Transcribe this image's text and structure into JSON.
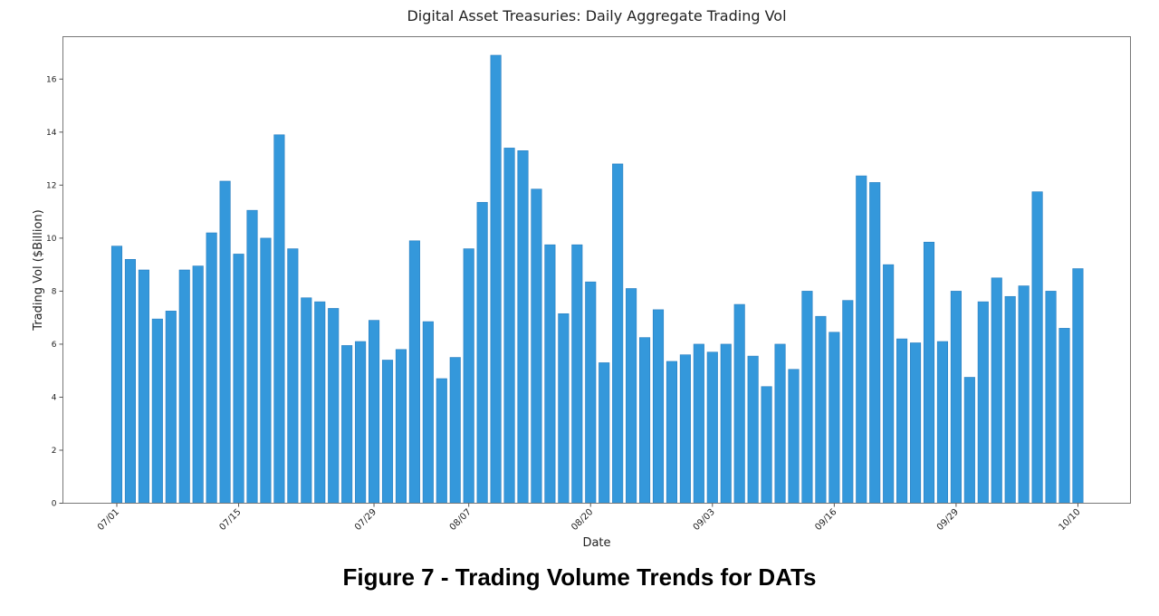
{
  "figure_caption": "Figure 7 - Trading Volume Trends for DATs",
  "colors": {
    "bar": "#3498db",
    "bar_edge": "#2b7fc0",
    "axis": "#777777",
    "text": "#222222"
  },
  "chart_data": {
    "type": "bar",
    "title": "Digital Asset Treasuries: Daily Aggregate Trading Vol",
    "xlabel": "Date",
    "ylabel": "Trading Vol ($Billion)",
    "ylim": [
      0,
      17.6
    ],
    "yticks": [
      0,
      2,
      4,
      6,
      8,
      10,
      12,
      14,
      16
    ],
    "grid": false,
    "legend": "none",
    "xtick_labels": [
      {
        "index": 0,
        "label": "07/01"
      },
      {
        "index": 9,
        "label": "07/15"
      },
      {
        "index": 19,
        "label": "07/29"
      },
      {
        "index": 26,
        "label": "08/07"
      },
      {
        "index": 35,
        "label": "08/20"
      },
      {
        "index": 44,
        "label": "09/03"
      },
      {
        "index": 53,
        "label": "09/16"
      },
      {
        "index": 62,
        "label": "09/29"
      },
      {
        "index": 71,
        "label": "10/10"
      }
    ],
    "values": [
      9.7,
      9.2,
      8.8,
      6.95,
      7.25,
      8.8,
      8.95,
      10.2,
      12.15,
      9.4,
      11.05,
      10.0,
      13.9,
      9.6,
      7.75,
      7.6,
      7.35,
      5.95,
      6.1,
      6.9,
      5.4,
      5.8,
      9.9,
      6.85,
      4.7,
      5.5,
      9.6,
      11.35,
      16.9,
      13.4,
      13.3,
      11.85,
      9.75,
      7.15,
      9.75,
      8.35,
      5.3,
      12.8,
      8.1,
      6.25,
      7.3,
      5.35,
      5.6,
      6.0,
      5.7,
      6.0,
      7.5,
      5.55,
      4.4,
      6.0,
      5.05,
      8.0,
      7.05,
      6.45,
      7.65,
      12.35,
      12.1,
      9.0,
      6.2,
      6.05,
      9.85,
      6.1,
      8.0,
      4.75,
      7.6,
      8.5,
      7.8,
      8.2,
      11.75,
      8.0,
      6.6,
      8.85
    ]
  }
}
